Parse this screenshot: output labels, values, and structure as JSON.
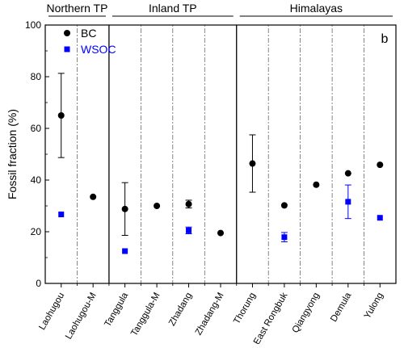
{
  "chart_data": {
    "type": "scatter",
    "panel_label": "b",
    "ylabel": "Fossil fraction (%)",
    "ylim": [
      0,
      100
    ],
    "yticks": [
      0,
      20,
      40,
      60,
      80,
      100
    ],
    "grid": false,
    "legend_position": "top-left",
    "regions": [
      {
        "label": "Northern TP",
        "first": 0,
        "last": 1
      },
      {
        "label": "Inland TP",
        "first": 2,
        "last": 5
      },
      {
        "label": "Himalayas",
        "first": 6,
        "last": 10
      }
    ],
    "categories": [
      "Laohugou",
      "Laohugou-M",
      "Tanggula",
      "Tanggula-M",
      "Zhadang",
      "Zhadang-M",
      "Thorung",
      "East Rongbuk",
      "Qiangyong",
      "Demula",
      "Yulong"
    ],
    "series": [
      {
        "name": "BC",
        "color": "#000000",
        "marker": "circle",
        "values": [
          65,
          33.5,
          28.8,
          30.0,
          30.7,
          19.5,
          46.4,
          30.2,
          38.2,
          42.6,
          45.9
        ],
        "errors": [
          16.3,
          null,
          10.2,
          null,
          1.5,
          null,
          11.1,
          null,
          null,
          null,
          null
        ]
      },
      {
        "name": "WSOC",
        "color": "#0000ff",
        "marker": "square",
        "values": [
          26.7,
          null,
          12.5,
          null,
          20.5,
          null,
          null,
          17.9,
          null,
          31.6,
          25.4
        ],
        "errors": [
          null,
          null,
          null,
          null,
          1.3,
          null,
          null,
          1.8,
          null,
          6.5,
          null
        ]
      }
    ]
  }
}
